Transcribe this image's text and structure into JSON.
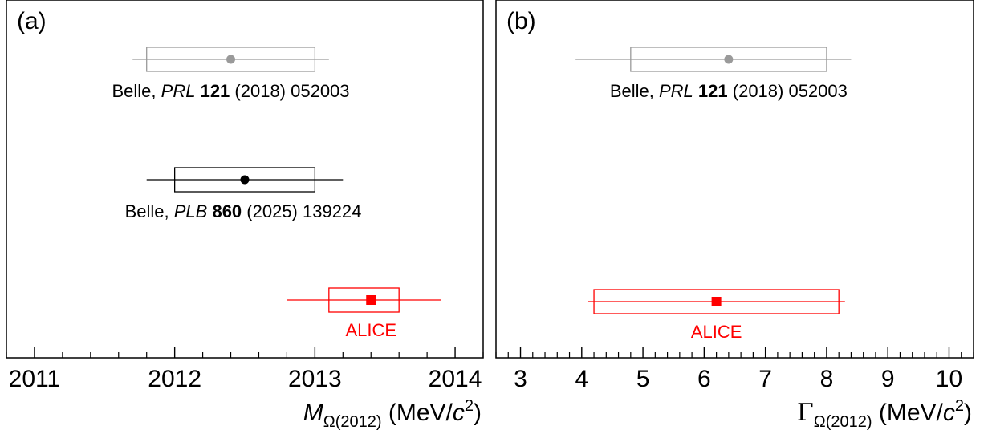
{
  "chart_data": [
    {
      "type": "forest",
      "panel_label": "(a)",
      "xlabel": {
        "symbol": "M",
        "subscript": "Ω(2012)",
        "unit_open": " (MeV/",
        "unit_c": "c",
        "unit_exp": "2",
        "unit_close": ")"
      },
      "xlim": [
        2010.8,
        2014.2
      ],
      "ticks": [
        "2011",
        "2012",
        "2013",
        "2014"
      ],
      "tick_values": [
        2011,
        2012,
        2013,
        2014
      ],
      "minor_step": 0.2,
      "entries": [
        {
          "label": {
            "pre": "Belle, ",
            "journal": "PRL",
            "volume": "121",
            "post": " (2018) 052003"
          },
          "value": 2012.4,
          "stat_low": 2011.8,
          "stat_high": 2013.0,
          "err_low": 2011.7,
          "err_high": 2013.1,
          "marker": "circle",
          "color": "#9a9a9a"
        },
        {
          "label": {
            "pre": "Belle, ",
            "journal": "PLB",
            "volume": "860",
            "post": " (2025) 139224"
          },
          "value": 2012.5,
          "stat_low": 2012.0,
          "stat_high": 2013.0,
          "err_low": 2011.8,
          "err_high": 2013.2,
          "marker": "circle",
          "color": "#000000"
        },
        {
          "label": {
            "pre": "ALICE",
            "journal": "",
            "volume": "",
            "post": ""
          },
          "value": 2013.4,
          "stat_low": 2013.1,
          "stat_high": 2013.6,
          "err_low": 2012.8,
          "err_high": 2013.9,
          "marker": "square",
          "color": "#ff0000"
        }
      ]
    },
    {
      "type": "forest",
      "panel_label": "(b)",
      "xlabel": {
        "symbol": "Γ",
        "subscript": "Ω(2012)",
        "unit_open": " (MeV/",
        "unit_c": "c",
        "unit_exp": "2",
        "unit_close": ")"
      },
      "xlim": [
        2.6,
        10.4
      ],
      "ticks": [
        "3",
        "4",
        "5",
        "6",
        "7",
        "8",
        "9",
        "10"
      ],
      "tick_values": [
        3,
        4,
        5,
        6,
        7,
        8,
        9,
        10
      ],
      "minor_step": 0.2,
      "entries": [
        {
          "label": {
            "pre": "Belle, ",
            "journal": "PRL",
            "volume": "121",
            "post": " (2018) 052003"
          },
          "value": 6.4,
          "stat_low": 4.8,
          "stat_high": 8.0,
          "err_low": 3.9,
          "err_high": 8.4,
          "marker": "circle",
          "color": "#9a9a9a"
        },
        {
          "label": {
            "pre": "ALICE",
            "journal": "",
            "volume": "",
            "post": ""
          },
          "value": 6.2,
          "stat_low": 4.2,
          "stat_high": 8.2,
          "err_low": 4.1,
          "err_high": 8.3,
          "marker": "square",
          "color": "#ff0000"
        }
      ]
    }
  ]
}
